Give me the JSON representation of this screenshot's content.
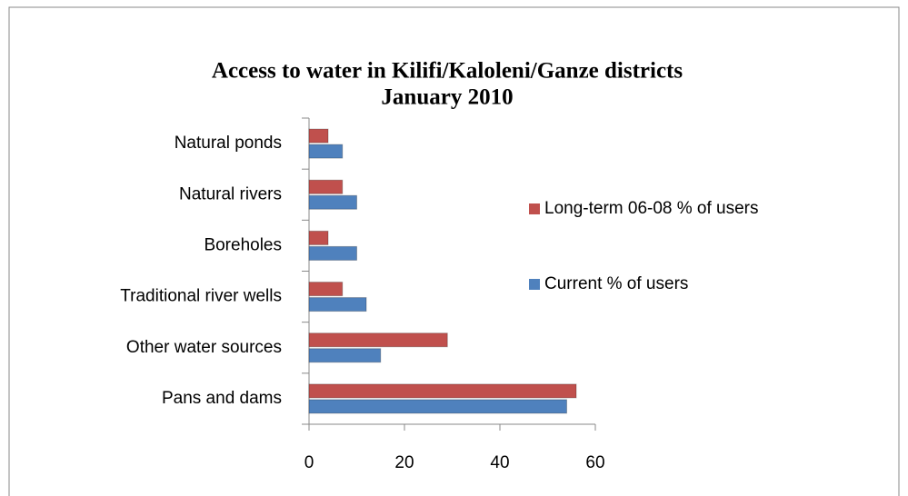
{
  "chart_data": {
    "type": "bar",
    "orientation": "horizontal",
    "title": [
      "Access to water in Kilifi/Kaloleni/Ganze districts",
      "January 2010"
    ],
    "categories": [
      "Pans and dams",
      "Other water sources",
      "Traditional river wells",
      "Boreholes",
      "Natural rivers",
      "Natural ponds"
    ],
    "series": [
      {
        "name": "Current % of users",
        "color": "#4f81bd",
        "values": [
          54,
          15,
          12,
          10,
          10,
          7
        ]
      },
      {
        "name": "Long-term 06-08 % of users",
        "color": "#c0504d",
        "values": [
          56,
          29,
          7,
          4,
          7,
          4
        ]
      }
    ],
    "xlim": [
      0,
      60
    ],
    "xticks": [
      0,
      20,
      40,
      60
    ],
    "legend": "right"
  }
}
